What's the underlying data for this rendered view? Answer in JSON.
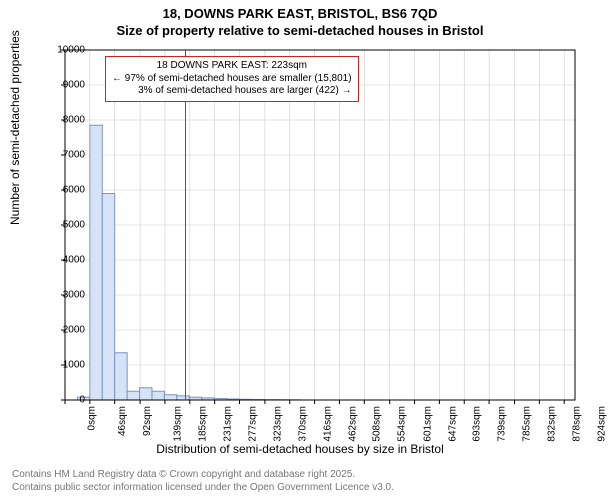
{
  "title": {
    "line1": "18, DOWNS PARK EAST, BRISTOL, BS6 7QD",
    "line2": "Size of property relative to semi-detached houses in Bristol"
  },
  "chart": {
    "type": "histogram",
    "background_color": "#ffffff",
    "plot_border_color": "#000000",
    "grid_color": "#cccccc",
    "bar_fill": "#d6e2f5",
    "bar_stroke": "#7a94c4",
    "bar_stroke_width": 1,
    "ylabel": "Number of semi-detached properties",
    "xlabel": "Distribution of semi-detached houses by size in Bristol",
    "label_fontsize": 12,
    "tick_fontsize": 10,
    "ylim": [
      0,
      10000
    ],
    "ytick_step": 1000,
    "xlim": [
      0,
      944
    ],
    "x_ticks": [
      0,
      46,
      92,
      139,
      185,
      231,
      277,
      323,
      370,
      416,
      462,
      508,
      554,
      601,
      647,
      693,
      739,
      785,
      832,
      878,
      924
    ],
    "x_tick_unit": "sqm",
    "bin_width": 23,
    "bins": [
      {
        "start": 0,
        "count": 0
      },
      {
        "start": 23,
        "count": 80
      },
      {
        "start": 46,
        "count": 7850
      },
      {
        "start": 69,
        "count": 5900
      },
      {
        "start": 92,
        "count": 1350
      },
      {
        "start": 115,
        "count": 250
      },
      {
        "start": 138,
        "count": 350
      },
      {
        "start": 161,
        "count": 250
      },
      {
        "start": 184,
        "count": 150
      },
      {
        "start": 207,
        "count": 120
      },
      {
        "start": 230,
        "count": 80
      },
      {
        "start": 253,
        "count": 60
      },
      {
        "start": 276,
        "count": 40
      },
      {
        "start": 299,
        "count": 30
      },
      {
        "start": 322,
        "count": 20
      },
      {
        "start": 345,
        "count": 15
      },
      {
        "start": 368,
        "count": 10
      },
      {
        "start": 391,
        "count": 8
      },
      {
        "start": 414,
        "count": 5
      }
    ],
    "marker": {
      "value": 223,
      "color": "#d02020",
      "line_width": 1
    },
    "annotation": {
      "border_color": "#d02020",
      "background": "#ffffff",
      "fontsize": 10,
      "lines": [
        "18 DOWNS PARK EAST: 223sqm",
        "← 97% of semi-detached houses are smaller (15,801)",
        "3% of semi-detached houses are larger (422) →"
      ]
    }
  },
  "footer": {
    "line1": "Contains HM Land Registry data © Crown copyright and database right 2025.",
    "line2": "Contains public sector information licensed under the Open Government Licence v3.0.",
    "color": "#777777",
    "fontsize": 10
  }
}
